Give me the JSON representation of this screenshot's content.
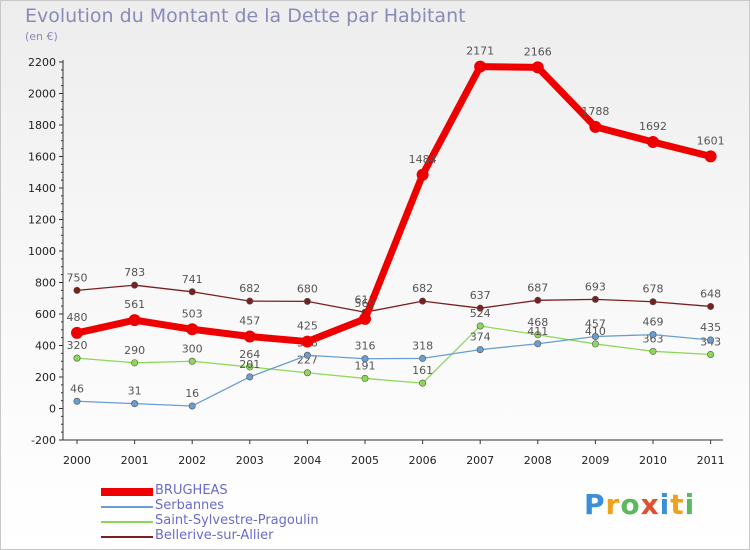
{
  "title": "Evolution du Montant de la Dette par Habitant",
  "unit": "(en €)",
  "logo": {
    "text": "Proxiti",
    "colors": [
      "#3b8fd9",
      "#f0a21a",
      "#5cb85c",
      "#e05030",
      "#3b8fd9",
      "#f0a21a",
      "#5cb85c"
    ]
  },
  "chart_data": {
    "type": "line",
    "x": [
      "2000",
      "2001",
      "2002",
      "2003",
      "2004",
      "2005",
      "2006",
      "2007",
      "2008",
      "2009",
      "2010",
      "2011"
    ],
    "ylim": [
      -200,
      2200
    ],
    "yticks": [
      -200,
      0,
      200,
      400,
      600,
      800,
      1000,
      1200,
      1400,
      1600,
      1800,
      2000,
      2200
    ],
    "ytick_labels": [
      "-200",
      "0",
      "200",
      "400",
      "600",
      "800",
      "1000",
      "1200",
      "1400",
      "1600",
      "1800",
      "2000",
      "2200"
    ],
    "grid": false,
    "legend_position": "bottom-left",
    "series": [
      {
        "name": "Bellerive-sur-Allier",
        "color": "#7a1f1f",
        "values": [
          750,
          783,
          741,
          682,
          680,
          611,
          682,
          637,
          687,
          693,
          678,
          648
        ],
        "labels": [
          "750",
          "783",
          "741",
          "682",
          "680",
          "611",
          "682",
          "637",
          "687",
          "693",
          "678",
          "648"
        ]
      },
      {
        "name": "Saint-Sylvestre-Pragoulin",
        "color": "#8ed858",
        "values": [
          320,
          290,
          300,
          264,
          227,
          191,
          161,
          524,
          468,
          410,
          363,
          343
        ],
        "labels": [
          "320",
          "290",
          "300",
          "264",
          "227",
          "191",
          "161",
          "524",
          "468",
          "410",
          "363",
          "343"
        ]
      },
      {
        "name": "Serbannes",
        "color": "#6a9dd0",
        "values": [
          46,
          31,
          16,
          201,
          338,
          316,
          318,
          374,
          411,
          457,
          469,
          435
        ],
        "labels": [
          "46",
          "31",
          "16",
          "201",
          "338",
          "316",
          "318",
          "374",
          "411",
          "457",
          "469",
          "435"
        ]
      },
      {
        "name": "BRUGHEAS",
        "color": "#ee0000",
        "values": [
          480,
          561,
          503,
          457,
          425,
          569,
          1484,
          2171,
          2166,
          1788,
          1692,
          1601
        ],
        "labels": [
          "480",
          "561",
          "503",
          "457",
          "425",
          "569",
          "1484",
          "2171",
          "2166",
          "1788",
          "1692",
          "1601"
        ]
      }
    ]
  },
  "legend": [
    {
      "name": "BRUGHEAS",
      "color": "#ee0000",
      "thick": true
    },
    {
      "name": "Serbannes",
      "color": "#6a9dd0",
      "thick": false
    },
    {
      "name": "Saint-Sylvestre-Pragoulin",
      "color": "#8ed858",
      "thick": false
    },
    {
      "name": "Bellerive-sur-Allier",
      "color": "#7a1f1f",
      "thick": false
    }
  ]
}
